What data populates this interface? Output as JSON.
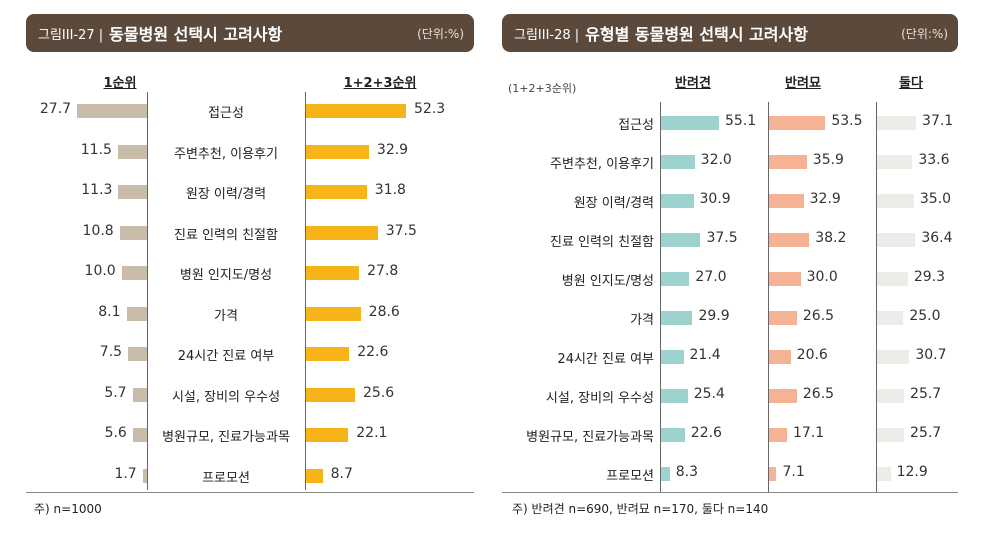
{
  "charts": [
    {
      "figure_label": "그림III-27 |",
      "title": "동물병원 선택시 고려사항",
      "unit": "(단위:%)",
      "note": "주) n=1000"
    },
    {
      "figure_label": "그림III-28 |",
      "title": "유형별 동물병원 선택시 고려사항",
      "unit": "(단위:%)",
      "subtitle": "(1+2+3순위)",
      "note": "주) 반려견 n=690, 반려묘 n=170, 둘다 n=140"
    }
  ],
  "colors": {
    "header_bg": "#5b4a3c",
    "rank1": "#c9bcab",
    "rank123": "#f7b418",
    "dog": "#9ed2cf",
    "cat": "#f5b294",
    "both": "#eeece8"
  },
  "chart_data": [
    {
      "type": "bar",
      "categories": [
        "접근성",
        "주변추천, 이용후기",
        "원장 이력/경력",
        "진료 인력의 친절함",
        "병원 인지도/명성",
        "가격",
        "24시간 진료 여부",
        "시설, 장비의 우수성",
        "병원규모, 진료가능과목",
        "프로모션"
      ],
      "series": [
        {
          "name": "1순위",
          "values": [
            27.7,
            11.5,
            11.3,
            10.8,
            10.0,
            8.1,
            7.5,
            5.7,
            5.6,
            1.7
          ]
        },
        {
          "name": "1+2+3순위",
          "values": [
            52.3,
            32.9,
            31.8,
            37.5,
            27.8,
            28.6,
            22.6,
            25.6,
            22.1,
            8.7
          ]
        }
      ]
    },
    {
      "type": "bar",
      "categories": [
        "접근성",
        "주변추천, 이용후기",
        "원장 이력/경력",
        "진료 인력의 친절함",
        "병원 인지도/명성",
        "가격",
        "24시간 진료 여부",
        "시설, 장비의 우수성",
        "병원규모, 진료가능과목",
        "프로모션"
      ],
      "series": [
        {
          "name": "반려견",
          "values": [
            55.1,
            32.0,
            30.9,
            37.5,
            27.0,
            29.9,
            21.4,
            25.4,
            22.6,
            8.3
          ]
        },
        {
          "name": "반려묘",
          "values": [
            53.5,
            35.9,
            32.9,
            38.2,
            30.0,
            26.5,
            20.6,
            26.5,
            17.1,
            7.1
          ]
        },
        {
          "name": "둘다",
          "values": [
            37.1,
            33.6,
            35.0,
            36.4,
            29.3,
            25.0,
            30.7,
            25.7,
            25.7,
            12.9
          ]
        }
      ]
    }
  ]
}
